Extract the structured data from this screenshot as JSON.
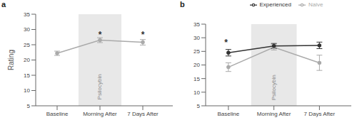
{
  "chart_data": [
    {
      "type": "line",
      "title": "a",
      "x": [
        0,
        1,
        2
      ],
      "xlim": [
        -0.5,
        2.7
      ],
      "xticks": [
        {
          "value": 0,
          "label": "Baseline"
        },
        {
          "value": 1,
          "label": "Morning After"
        },
        {
          "value": 2,
          "label": "7 Days After"
        }
      ],
      "ylabel": "Rating",
      "ylim": [
        5,
        35
      ],
      "yticks": [
        5,
        10,
        15,
        20,
        25,
        30,
        35
      ],
      "series": [
        {
          "color": "#aaaaaa",
          "values": [
            22.2,
            26.5,
            25.8
          ],
          "yerr": [
            0.7,
            0.8,
            0.9
          ],
          "marker": "o"
        }
      ],
      "shade": {
        "x": [
          0.5,
          1.5
        ],
        "color": "#e8e8e8"
      },
      "annotations": [
        {
          "text": "*",
          "x": 1,
          "y": 28.2
        },
        {
          "text": "*",
          "x": 2,
          "y": 28.2
        },
        {
          "text": "Psilocybin",
          "x": 1.0,
          "y": 7.0,
          "orientation": "vertical"
        }
      ]
    },
    {
      "type": "line",
      "title": "b",
      "x": [
        0,
        1,
        2
      ],
      "xlim": [
        -0.5,
        2.7
      ],
      "xticks": [
        {
          "value": 0,
          "label": "Baseline"
        },
        {
          "value": 1,
          "label": "Morning After"
        },
        {
          "value": 2,
          "label": "7 Days After"
        }
      ],
      "ylim": [
        5,
        35
      ],
      "yticks": [
        5,
        10,
        15,
        20,
        25,
        30,
        35
      ],
      "series": [
        {
          "name": "Naive",
          "color": "#aaaaaa",
          "values": [
            19.2,
            26.5,
            20.8
          ],
          "yerr": [
            1.6,
            1.0,
            2.8
          ],
          "marker": "o"
        },
        {
          "name": "Experienced",
          "color": "#333333",
          "values": [
            24.5,
            27.0,
            27.2
          ],
          "yerr": [
            1.2,
            0.9,
            1.2
          ],
          "marker": "o"
        }
      ],
      "legend": "top",
      "shade": {
        "x": [
          0.5,
          1.5
        ],
        "color": "#e8e8e8"
      },
      "annotations": [
        {
          "text": "*",
          "x": -0.05,
          "y": 28.2
        },
        {
          "text": "Psilocybin",
          "x": 1.0,
          "y": 7.0,
          "orientation": "vertical"
        }
      ]
    }
  ]
}
